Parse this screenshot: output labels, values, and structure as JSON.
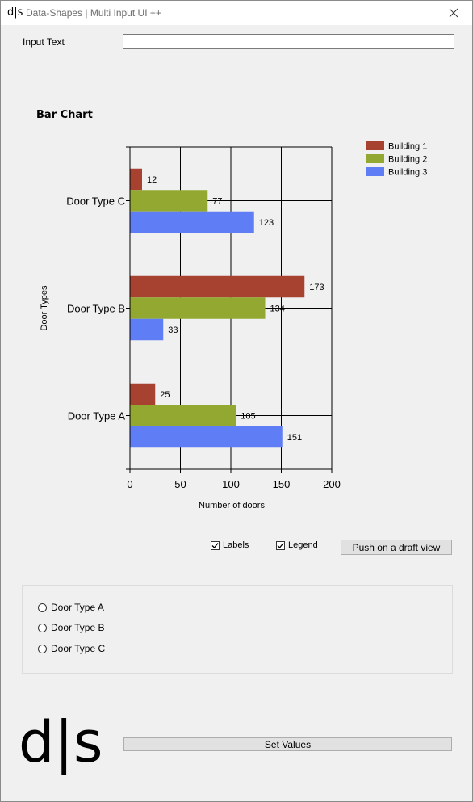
{
  "window": {
    "logo_text": "d|s",
    "title": "Data-Shapes | Multi Input UI ++",
    "close_icon": "close-icon"
  },
  "input": {
    "label": "Input Text",
    "value": ""
  },
  "chart_title": "Bar Chart",
  "chart_data": {
    "type": "bar",
    "orientation": "horizontal",
    "categories": [
      "Door Type A",
      "Door Type B",
      "Door Type C"
    ],
    "series": [
      {
        "name": "Building 1",
        "values": [
          25,
          173,
          12
        ],
        "color": "#a84230"
      },
      {
        "name": "Building 2",
        "values": [
          105,
          134,
          77
        ],
        "color": "#92a830"
      },
      {
        "name": "Building 3",
        "values": [
          151,
          33,
          123
        ],
        "color": "#5f7ef5"
      }
    ],
    "xlabel": "Number of doors",
    "ylabel": "Door Types",
    "xlim": [
      0,
      200
    ],
    "xticks": [
      0,
      50,
      100,
      150,
      200
    ],
    "grid": true,
    "legend": "top-right",
    "data_labels": true
  },
  "controls": {
    "labels_checkbox": {
      "label": "Labels",
      "checked": true
    },
    "legend_checkbox": {
      "label": "Legend",
      "checked": true
    },
    "push_button": "Push on a draft view"
  },
  "radio_options": [
    {
      "label": "Door Type A",
      "checked": false
    },
    {
      "label": "Door Type B",
      "checked": false
    },
    {
      "label": "Door Type C",
      "checked": false
    }
  ],
  "set_values_button": "Set Values",
  "big_logo": "d|s"
}
